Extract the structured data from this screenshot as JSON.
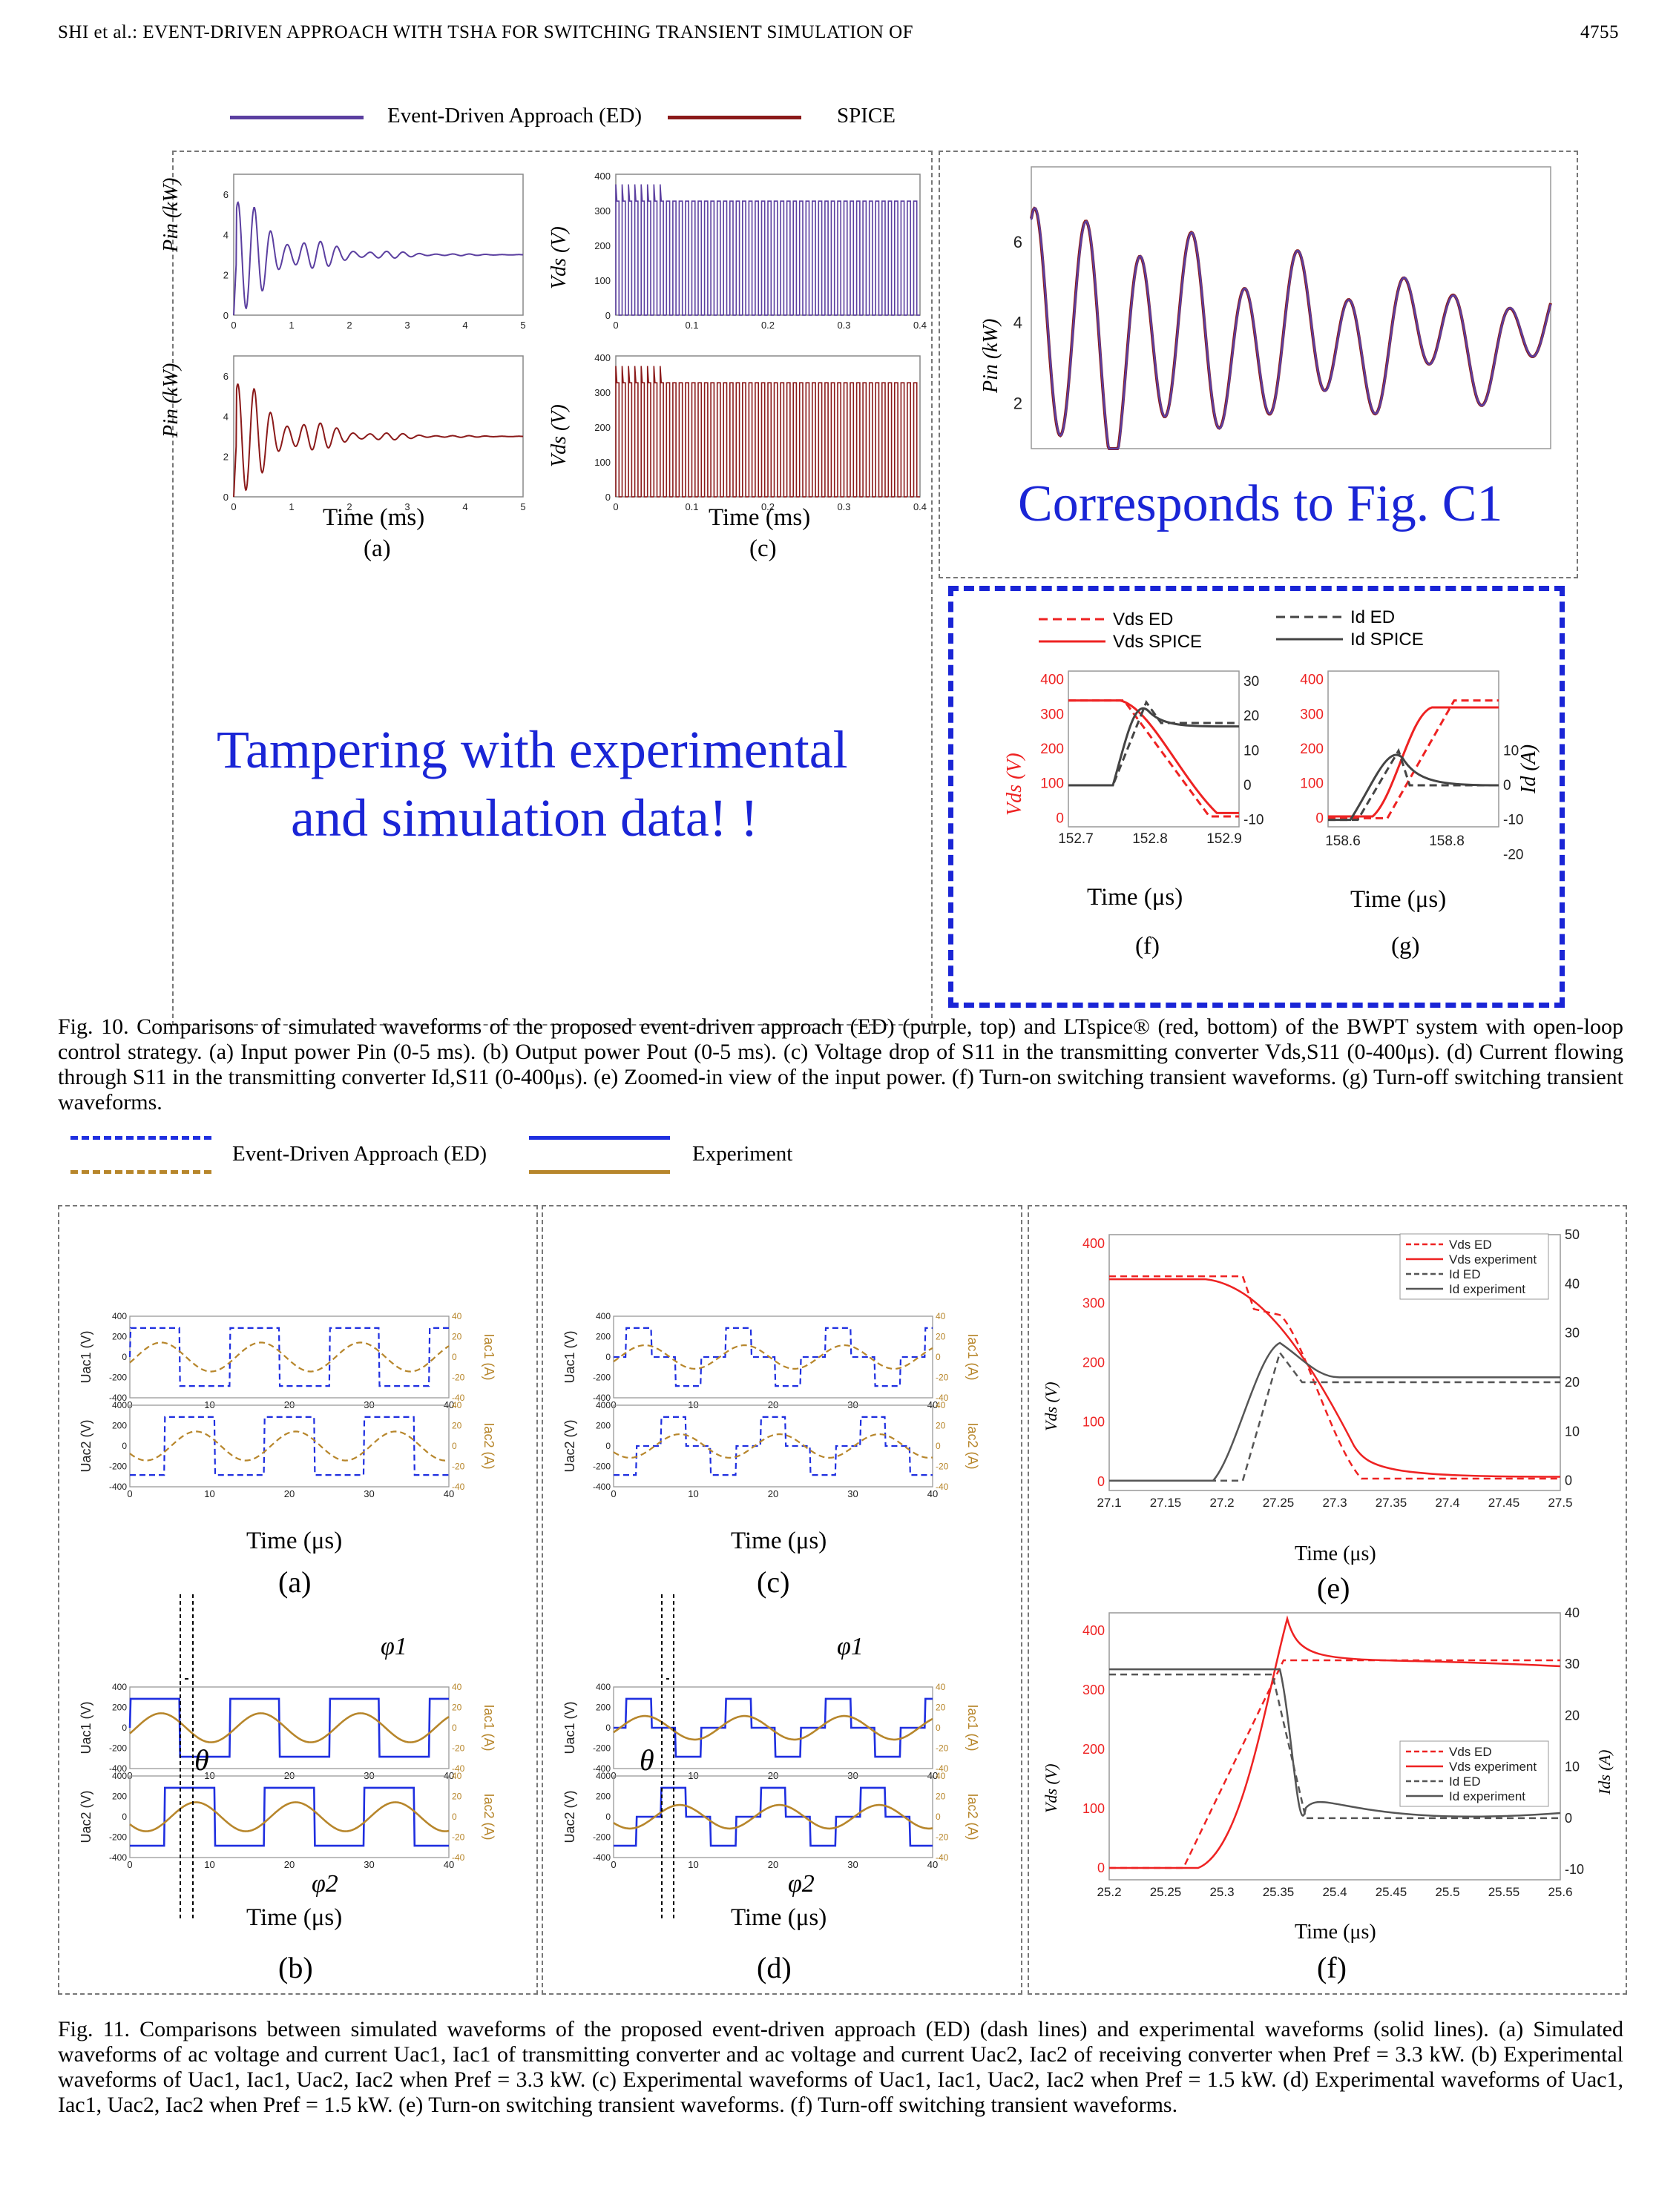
{
  "header": {
    "running_title": "SHI et al.: EVENT-DRIVEN APPROACH WITH TSHA FOR SWITCHING TRANSIENT SIMULATION OF",
    "page_number": "4755"
  },
  "fig10": {
    "legend": {
      "ed": "Event-Driven Approach (ED)",
      "spice": "SPICE"
    },
    "ylabels": {
      "pin": "Pin (kW)",
      "vds": "Vds (V)",
      "id": "Id (A)"
    },
    "xlabels": {
      "ms": "Time (ms)",
      "us": "Time (μs)"
    },
    "sub": {
      "a": "(a)",
      "c": "(c)",
      "f": "(f)",
      "g": "(g)"
    },
    "ticks_a_x": [
      "0",
      "1",
      "2",
      "3",
      "4",
      "5"
    ],
    "ticks_a_y": [
      "0",
      "2",
      "4",
      "6"
    ],
    "ticks_c_x": [
      "0",
      "0.1",
      "0.2",
      "0.3",
      "0.4"
    ],
    "ticks_c_y": [
      "0",
      "100",
      "200",
      "300",
      "400"
    ],
    "ticks_e_y": [
      "2",
      "4",
      "6"
    ],
    "fig_c1_note": "Corresponds to Fig. C1",
    "tamper_note_1": "Tampering with experimental",
    "tamper_note_2": "and simulation data! !",
    "f_legend": {
      "vds_ed": "Vds ED",
      "vds_spice": "Vds SPICE",
      "id_ed": "Id ED",
      "id_spice": "Id SPICE"
    },
    "f_ticks_x": [
      "152.7",
      "152.8",
      "152.9"
    ],
    "g_ticks_x": [
      "158.6",
      "158.8"
    ],
    "f_ticks_vds": [
      "0",
      "100",
      "200",
      "300",
      "400"
    ],
    "f_ticks_id": [
      "-10",
      "0",
      "10",
      "20",
      "30"
    ],
    "g_ticks_id": [
      "-20",
      "-10",
      "0",
      "10"
    ],
    "caption": "Fig. 10. Comparisons of simulated waveforms of the proposed event-driven approach (ED) (purple, top) and LTspice® (red, bottom) of the BWPT system with open-loop control strategy. (a) Input power Pin (0-5 ms). (b) Output power Pout (0-5 ms). (c) Voltage drop of S11 in the transmitting converter Vds,S11 (0-400μs). (d) Current flowing through S11 in the transmitting converter Id,S11 (0-400μs). (e) Zoomed-in view of the input power. (f) Turn-on switching transient waveforms. (g) Turn-off switching transient waveforms."
  },
  "fig11": {
    "legend": {
      "ed": "Event-Driven Approach (ED)",
      "exp": "Experiment"
    },
    "ylabels": {
      "uac1": "Uac1 (V)",
      "uac2": "Uac2 (V)",
      "iac1": "Iac1 (A)",
      "iac2": "Iac2 (A)",
      "vds": "Vds (V)",
      "ids": "Ids (A)"
    },
    "xlabel": "Time (μs)",
    "sub": {
      "a": "(a)",
      "b": "(b)",
      "c": "(c)",
      "d": "(d)",
      "e": "(e)",
      "f": "(f)"
    },
    "ticks_x": [
      "0",
      "10",
      "20",
      "30",
      "40"
    ],
    "ticks_v": [
      "-400",
      "-200",
      "0",
      "200",
      "400"
    ],
    "ticks_i": [
      "-40",
      "-20",
      "0",
      "20",
      "40"
    ],
    "symbols": {
      "theta": "θ",
      "phi1": "φ1",
      "phi2": "φ2"
    },
    "e_legend": [
      "Vds ED",
      "Vds experiment",
      "Id ED",
      "Id experiment"
    ],
    "f_legend": [
      "Vds ED",
      "Vds experiment",
      "Id ED",
      "Id experiment"
    ],
    "e_ticks_x": [
      "27.1",
      "27.15",
      "27.2",
      "27.25",
      "27.3",
      "27.35",
      "27.4",
      "27.45",
      "27.5"
    ],
    "e_ticks_v": [
      "0",
      "100",
      "200",
      "300",
      "400"
    ],
    "e_ticks_i": [
      "0",
      "10",
      "20",
      "30",
      "40",
      "50"
    ],
    "f_ticks_x": [
      "25.2",
      "25.25",
      "25.3",
      "25.35",
      "25.4",
      "25.45",
      "25.5",
      "25.55",
      "25.6"
    ],
    "f_ticks_v": [
      "0",
      "100",
      "200",
      "300",
      "400"
    ],
    "f_ticks_i": [
      "-10",
      "0",
      "10",
      "20",
      "30",
      "40"
    ],
    "caption": "Fig. 11. Comparisons between simulated waveforms of the proposed event-driven approach (ED) (dash lines) and experimental waveforms (solid lines). (a) Simulated waveforms of ac voltage and current Uac1, Iac1 of transmitting converter and ac voltage and current Uac2, Iac2 of receiving converter when Pref = 3.3 kW. (b) Experimental waveforms of Uac1, Iac1, Uac2, Iac2 when Pref = 3.3 kW. (c) Experimental waveforms of Uac1, Iac1, Uac2, Iac2 when Pref = 1.5 kW. (d) Experimental waveforms of Uac1, Iac1, Uac2, Iac2 when Pref = 1.5 kW. (e) Turn-on switching transient waveforms. (f) Turn-off switching transient waveforms."
  },
  "colors": {
    "purple": "#5b3fa0",
    "red": "#8b1a1a",
    "blue_dash": "#1f2fe0",
    "orange": "#b7862b",
    "bright_red": "#ee2222",
    "annotation_blue": "#1a25d6"
  }
}
